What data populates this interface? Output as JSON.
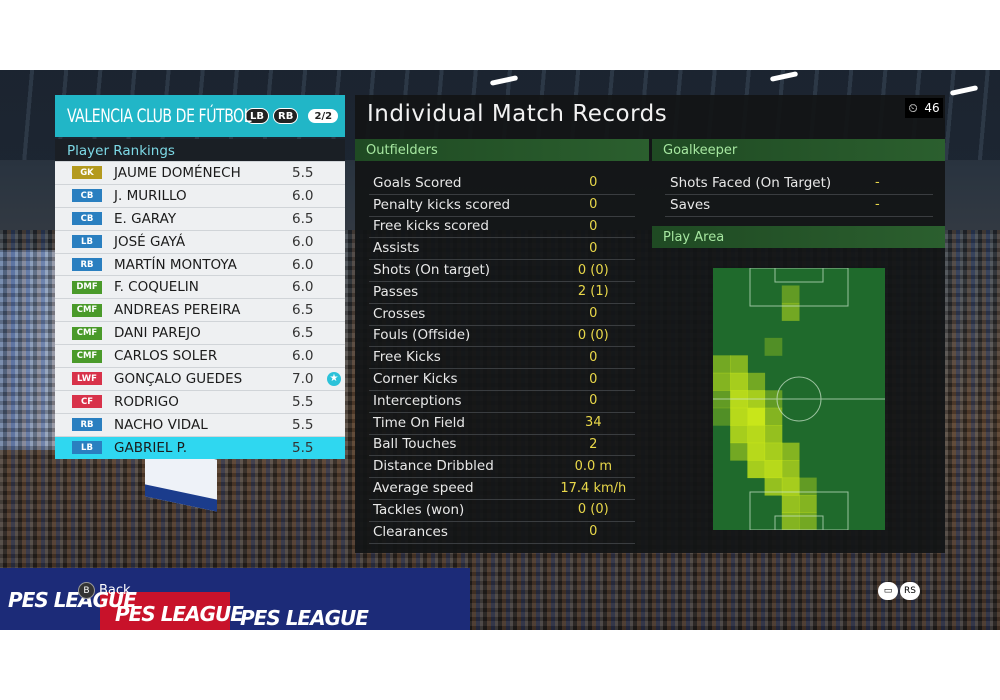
{
  "team": {
    "name": "VALENCIA CLUB DE FÚTBOL",
    "lb_button": "LB",
    "rb_button": "RB",
    "page": "2/2"
  },
  "rankings": {
    "title": "Player Rankings",
    "players": [
      {
        "pos": "GK",
        "pos_color": "#b49a1e",
        "name": "JAUME DOMÉNECH",
        "rating": "5.5",
        "selected": false
      },
      {
        "pos": "CB",
        "pos_color": "#2a7fc0",
        "name": "J. MURILLO",
        "rating": "6.0",
        "selected": false
      },
      {
        "pos": "CB",
        "pos_color": "#2a7fc0",
        "name": "E. GARAY",
        "rating": "6.5",
        "selected": false
      },
      {
        "pos": "LB",
        "pos_color": "#2a7fc0",
        "name": "JOSÉ GAYÁ",
        "rating": "6.0",
        "selected": false
      },
      {
        "pos": "RB",
        "pos_color": "#2a7fc0",
        "name": "MARTÍN MONTOYA",
        "rating": "6.0",
        "selected": false
      },
      {
        "pos": "DMF",
        "pos_color": "#4a9a2a",
        "name": "F. COQUELIN",
        "rating": "6.0",
        "selected": false
      },
      {
        "pos": "CMF",
        "pos_color": "#4a9a2a",
        "name": "ANDREAS PEREIRA",
        "rating": "6.5",
        "selected": false
      },
      {
        "pos": "CMF",
        "pos_color": "#4a9a2a",
        "name": "DANI PAREJO",
        "rating": "6.5",
        "selected": false
      },
      {
        "pos": "CMF",
        "pos_color": "#4a9a2a",
        "name": "CARLOS SOLER",
        "rating": "6.0",
        "selected": false
      },
      {
        "pos": "LWF",
        "pos_color": "#d8324a",
        "name": "GONÇALO GUEDES",
        "rating": "7.0",
        "selected": false,
        "star": true
      },
      {
        "pos": "CF",
        "pos_color": "#d8324a",
        "name": "RODRIGO",
        "rating": "5.5",
        "selected": false
      },
      {
        "pos": "RB",
        "pos_color": "#2a7fc0",
        "name": "NACHO VIDAL",
        "rating": "5.5",
        "selected": false
      },
      {
        "pos": "LB",
        "pos_color": "#2a7fc0",
        "name": "GABRIEL P.",
        "rating": "5.5",
        "selected": true
      }
    ]
  },
  "main": {
    "title": "Individual Match Records",
    "clock": "46",
    "outfielders_title": "Outfielders",
    "goalkeeper_title": "Goalkeeper",
    "play_area_title": "Play Area",
    "stats": [
      {
        "label": "Goals Scored",
        "value": "0"
      },
      {
        "label": "Penalty kicks scored",
        "value": "0"
      },
      {
        "label": "Free kicks scored",
        "value": "0"
      },
      {
        "label": "Assists",
        "value": "0"
      },
      {
        "label": "Shots (On target)",
        "value": "0 (0)"
      },
      {
        "label": "Passes",
        "value": "2 (1)"
      },
      {
        "label": "Crosses",
        "value": "0"
      },
      {
        "label": "Fouls (Offside)",
        "value": "0 (0)"
      },
      {
        "label": "Free Kicks",
        "value": "0"
      },
      {
        "label": "Corner Kicks",
        "value": "0"
      },
      {
        "label": "Interceptions",
        "value": "0"
      },
      {
        "label": "Time On Field",
        "value": "34"
      },
      {
        "label": "Ball Touches",
        "value": "2"
      },
      {
        "label": "Distance Dribbled",
        "value": "0.0 m"
      },
      {
        "label": "Average speed",
        "value": "17.4 km/h"
      },
      {
        "label": "Tackles (won)",
        "value": "0 (0)"
      },
      {
        "label": "Clearances",
        "value": "0"
      }
    ],
    "gk_stats": [
      {
        "label": "Shots Faced (On Target)",
        "value": "-"
      },
      {
        "label": "Saves",
        "value": "-"
      }
    ]
  },
  "controls": {
    "back_button": "B",
    "back_label": "Back",
    "chat_icon": "speech-bubble-icon",
    "rs_button": "RS"
  },
  "boards": {
    "ad_text": "PES LEAGUE"
  },
  "colors": {
    "team_bar": "#21b6c7",
    "selected_row": "#2fd7f0",
    "section_header": "#2b5f2e",
    "stat_value": "#e9d84a",
    "heat_hot": "#c8e61a"
  }
}
